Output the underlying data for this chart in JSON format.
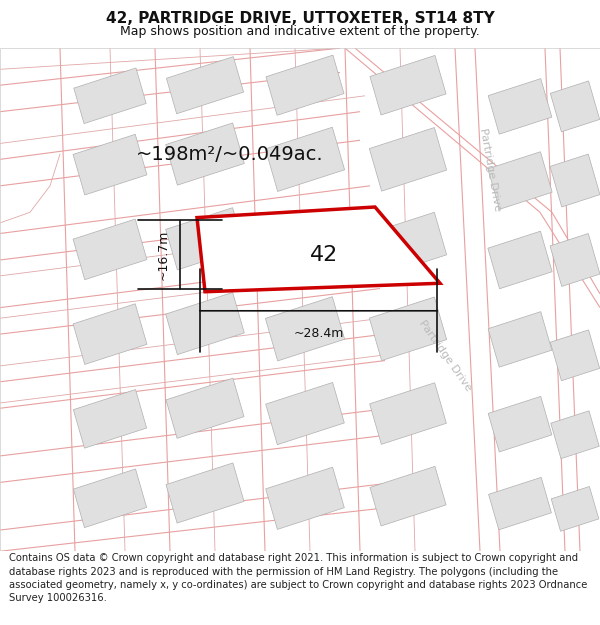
{
  "title_line1": "42, PARTRIDGE DRIVE, UTTOXETER, ST14 8TY",
  "title_line2": "Map shows position and indicative extent of the property.",
  "footer_text": "Contains OS data © Crown copyright and database right 2021. This information is subject to Crown copyright and database rights 2023 and is reproduced with the permission of HM Land Registry. The polygons (including the associated geometry, namely x, y co-ordinates) are subject to Crown copyright and database rights 2023 Ordnance Survey 100026316.",
  "area_label": "~198m²/~0.049ac.",
  "property_number": "42",
  "dim_width": "~28.4m",
  "dim_height": "~16.7m",
  "bg_color": "#ffffff",
  "map_bg": "#ffffff",
  "title_fontsize": 11,
  "subtitle_fontsize": 9,
  "footer_fontsize": 7.2,
  "highlight_color": "#cc0000",
  "road_line_color": "#e8a0a0",
  "boundary_line_color": "#d08080",
  "building_fill": "#e0e0e0",
  "building_edge": "#b0b0b0",
  "road_label_color": "#bbbbbb",
  "dim_line_color": "#111111",
  "area_fontsize": 14,
  "prop_fontsize": 16,
  "dim_fontsize": 9
}
